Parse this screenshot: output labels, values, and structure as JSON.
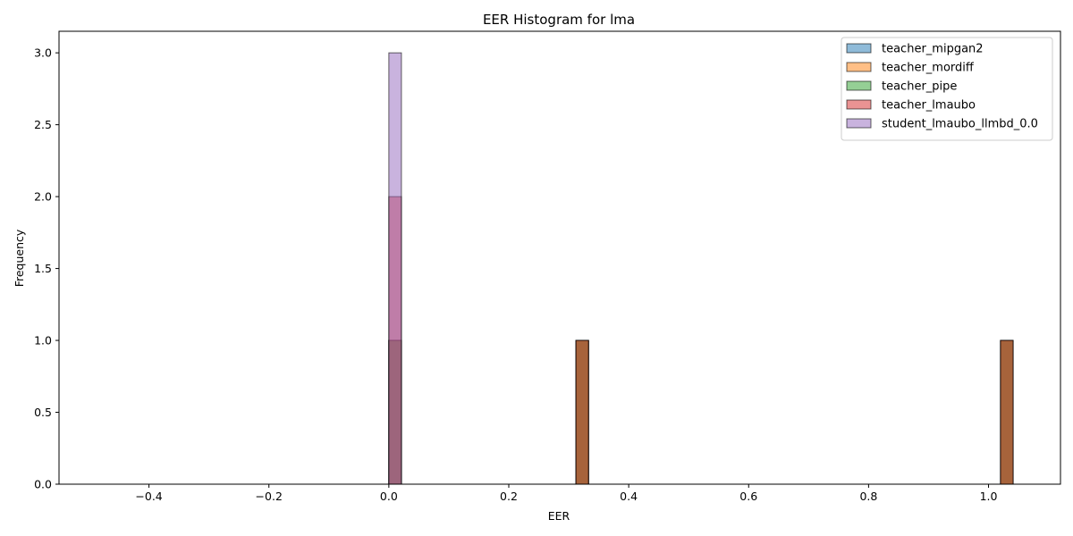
{
  "chart_data": {
    "type": "bar",
    "title": "EER Histogram for lma",
    "xlabel": "EER",
    "ylabel": "Frequency",
    "xlim": [
      -0.55,
      1.12
    ],
    "ylim": [
      0,
      3.15
    ],
    "x_ticks": [
      -0.4,
      -0.2,
      0.0,
      0.2,
      0.4,
      0.6,
      0.8,
      1.0
    ],
    "x_tick_labels": [
      "−0.4",
      "−0.2",
      "0.0",
      "0.2",
      "0.4",
      "0.6",
      "0.8",
      "1.0"
    ],
    "y_ticks": [
      0.0,
      0.5,
      1.0,
      1.5,
      2.0,
      2.5,
      3.0
    ],
    "y_tick_labels": [
      "0.0",
      "0.5",
      "1.0",
      "1.5",
      "2.0",
      "2.5",
      "3.0"
    ],
    "bin_width": 0.021,
    "legend_position": "top-right",
    "series": [
      {
        "name": "teacher_mipgan2",
        "color": "#1f77b4",
        "bins": [
          {
            "x": 0.0,
            "count": 1
          },
          {
            "x": 0.312,
            "count": 1
          },
          {
            "x": 1.02,
            "count": 1
          }
        ]
      },
      {
        "name": "teacher_mordiff",
        "color": "#ff7f0e",
        "bins": [
          {
            "x": 0.0,
            "count": 1
          },
          {
            "x": 0.312,
            "count": 1
          },
          {
            "x": 1.02,
            "count": 1
          }
        ]
      },
      {
        "name": "teacher_pipe",
        "color": "#2ca02c",
        "bins": [
          {
            "x": 0.0,
            "count": 1
          },
          {
            "x": 0.312,
            "count": 1
          },
          {
            "x": 1.02,
            "count": 1
          }
        ]
      },
      {
        "name": "teacher_lmaubo",
        "color": "#d62728",
        "bins": [
          {
            "x": 0.0,
            "count": 2
          },
          {
            "x": 0.312,
            "count": 1
          },
          {
            "x": 1.02,
            "count": 1
          }
        ]
      },
      {
        "name": "student_lmaubo_llmbd_0.0",
        "color": "#9467bd",
        "bins": [
          {
            "x": 0.0,
            "count": 3
          }
        ]
      }
    ],
    "grid": false
  }
}
